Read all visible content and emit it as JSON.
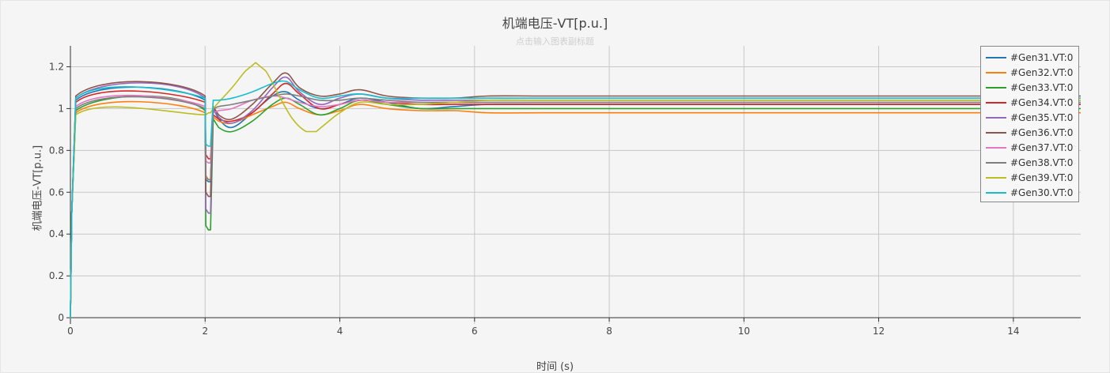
{
  "chart_data": {
    "type": "line",
    "title": "机端电压-VT[p.u.]",
    "subtitle": "点击输入图表副标题",
    "xlabel": "时间 (s)",
    "ylabel": "机端电压-VT[p.u.]",
    "xlim": [
      0,
      15
    ],
    "ylim": [
      -0.03,
      1.3
    ],
    "xticks": [
      0,
      2,
      4,
      6,
      8,
      10,
      12,
      14
    ],
    "yticks": [
      0,
      0.2,
      0.4,
      0.6,
      0.8,
      1,
      1.2
    ],
    "grid": true,
    "legend_position": "top-right",
    "series": [
      {
        "name": "#Gen31.VT:0",
        "color": "#1f77b4",
        "x": [
          0,
          0.02,
          0.08,
          2,
          2.01,
          2.05,
          2.08,
          2.12,
          2.2,
          2.4,
          2.7,
          3.0,
          3.2,
          3.4,
          3.7,
          4.0,
          4.3,
          4.7,
          5.2,
          5.7,
          6.2,
          7,
          8,
          10,
          12,
          14,
          15
        ],
        "y": [
          0,
          0.5,
          1.04,
          1.04,
          0.66,
          0.65,
          0.65,
          1.0,
          0.95,
          0.91,
          0.98,
          1.06,
          1.08,
          1.04,
          1.0,
          1.02,
          1.05,
          1.03,
          1.0,
          1.01,
          1.02,
          1.02,
          1.02,
          1.02,
          1.02,
          1.02,
          1.02
        ]
      },
      {
        "name": "#Gen32.VT:0",
        "color": "#ff7f0e",
        "x": [
          0,
          0.02,
          0.08,
          2,
          2.01,
          2.05,
          2.08,
          2.12,
          2.2,
          2.4,
          2.7,
          3.0,
          3.2,
          3.4,
          3.7,
          4.0,
          4.3,
          4.7,
          5.2,
          5.7,
          6.2,
          7,
          8,
          10,
          12,
          14,
          15
        ],
        "y": [
          0,
          0.5,
          0.98,
          0.98,
          0.68,
          0.66,
          0.66,
          0.96,
          0.94,
          0.93,
          0.97,
          1.01,
          1.03,
          1.0,
          0.97,
          0.99,
          1.02,
          1.0,
          0.99,
          0.99,
          0.98,
          0.98,
          0.98,
          0.98,
          0.98,
          0.98,
          0.98
        ]
      },
      {
        "name": "#Gen33.VT:0",
        "color": "#2ca02c",
        "x": [
          0,
          0.02,
          0.08,
          2,
          2.01,
          2.05,
          2.08,
          2.12,
          2.2,
          2.4,
          2.7,
          3.0,
          3.2,
          3.4,
          3.7,
          4.0,
          4.3,
          4.7,
          5.2,
          5.7,
          6.2,
          7,
          8,
          10,
          12,
          14,
          15
        ],
        "y": [
          0,
          0.5,
          0.99,
          0.99,
          0.44,
          0.42,
          0.42,
          0.95,
          0.91,
          0.89,
          0.94,
          1.02,
          1.05,
          1.02,
          0.97,
          1.0,
          1.04,
          1.02,
          1.0,
          1.0,
          1.0,
          1.0,
          1.0,
          1.0,
          1.0,
          1.0,
          1.0
        ]
      },
      {
        "name": "#Gen34.VT:0",
        "color": "#d62728",
        "x": [
          0,
          0.02,
          0.08,
          2,
          2.01,
          2.05,
          2.08,
          2.12,
          2.2,
          2.4,
          2.7,
          3.0,
          3.2,
          3.4,
          3.7,
          4.0,
          4.3,
          4.7,
          5.2,
          5.7,
          6.2,
          7,
          8,
          10,
          12,
          14,
          15
        ],
        "y": [
          0,
          0.5,
          1.03,
          1.03,
          0.78,
          0.76,
          0.76,
          0.97,
          0.95,
          0.94,
          0.98,
          1.07,
          1.12,
          1.07,
          1.0,
          1.02,
          1.04,
          1.03,
          1.02,
          1.02,
          1.02,
          1.02,
          1.02,
          1.02,
          1.02,
          1.02,
          1.02
        ]
      },
      {
        "name": "#Gen35.VT:0",
        "color": "#9467bd",
        "x": [
          0,
          0.02,
          0.08,
          2,
          2.01,
          2.05,
          2.08,
          2.12,
          2.2,
          2.4,
          2.7,
          3.0,
          3.2,
          3.4,
          3.7,
          4.0,
          4.3,
          4.7,
          5.2,
          5.7,
          6.2,
          7,
          8,
          10,
          12,
          14,
          15
        ],
        "y": [
          0,
          0.5,
          1.05,
          1.05,
          0.52,
          0.5,
          0.5,
          1.0,
          0.96,
          0.93,
          0.99,
          1.1,
          1.15,
          1.08,
          1.02,
          1.05,
          1.07,
          1.05,
          1.04,
          1.04,
          1.04,
          1.04,
          1.04,
          1.04,
          1.04,
          1.04,
          1.04
        ]
      },
      {
        "name": "#Gen36.VT:0",
        "color": "#8c564b",
        "x": [
          0,
          0.02,
          0.08,
          2,
          2.01,
          2.05,
          2.08,
          2.12,
          2.2,
          2.4,
          2.7,
          3.0,
          3.2,
          3.4,
          3.7,
          4.0,
          4.3,
          4.7,
          5.2,
          5.7,
          6.2,
          7,
          8,
          10,
          12,
          14,
          15
        ],
        "y": [
          0,
          0.5,
          1.06,
          1.06,
          0.6,
          0.58,
          0.58,
          1.01,
          0.97,
          0.95,
          1.02,
          1.12,
          1.17,
          1.1,
          1.06,
          1.07,
          1.09,
          1.06,
          1.05,
          1.05,
          1.06,
          1.06,
          1.06,
          1.06,
          1.06,
          1.06,
          1.06
        ]
      },
      {
        "name": "#Gen37.VT:0",
        "color": "#e377c2",
        "x": [
          0,
          0.02,
          0.08,
          2,
          2.01,
          2.05,
          2.08,
          2.12,
          2.2,
          2.4,
          2.7,
          3.0,
          3.2,
          3.4,
          3.7,
          4.0,
          4.3,
          4.7,
          5.2,
          5.7,
          6.2,
          7,
          8,
          10,
          12,
          14,
          15
        ],
        "y": [
          0,
          0.5,
          1.01,
          1.01,
          0.75,
          0.74,
          0.74,
          0.98,
          0.99,
          1.0,
          1.04,
          1.06,
          1.05,
          1.03,
          1.01,
          1.02,
          1.04,
          1.03,
          1.03,
          1.03,
          1.03,
          1.03,
          1.03,
          1.03,
          1.03,
          1.03,
          1.03
        ]
      },
      {
        "name": "#Gen38.VT:0",
        "color": "#7f7f7f",
        "x": [
          0,
          0.02,
          0.08,
          2,
          2.01,
          2.05,
          2.08,
          2.12,
          2.2,
          2.4,
          2.7,
          3.0,
          3.2,
          3.4,
          3.7,
          4.0,
          4.3,
          4.7,
          5.2,
          5.7,
          6.2,
          7,
          8,
          10,
          12,
          14,
          15
        ],
        "y": [
          0,
          0.5,
          1.0,
          1.0,
          0.67,
          0.66,
          0.66,
          1.0,
          1.01,
          1.02,
          1.04,
          1.06,
          1.07,
          1.06,
          1.04,
          1.04,
          1.05,
          1.04,
          1.03,
          1.03,
          1.03,
          1.03,
          1.03,
          1.03,
          1.03,
          1.03,
          1.03
        ]
      },
      {
        "name": "#Gen39.VT:0",
        "color": "#bcbd22",
        "x": [
          0,
          0.02,
          0.08,
          2,
          2.01,
          2.05,
          2.08,
          2.12,
          2.2,
          2.4,
          2.6,
          2.75,
          2.9,
          3.1,
          3.3,
          3.5,
          3.65,
          3.8,
          4.0,
          4.3,
          4.7,
          5.2,
          5.7,
          6.2,
          7,
          8,
          10,
          12,
          14,
          15
        ],
        "y": [
          0,
          0.5,
          0.97,
          0.97,
          0.97,
          0.98,
          0.98,
          1.0,
          1.03,
          1.1,
          1.18,
          1.22,
          1.18,
          1.06,
          0.95,
          0.89,
          0.89,
          0.93,
          0.98,
          1.03,
          1.02,
          1.02,
          1.03,
          1.04,
          1.04,
          1.04,
          1.04,
          1.04,
          1.04,
          1.04
        ]
      },
      {
        "name": "#Gen30.VT:0",
        "color": "#17becf",
        "x": [
          0,
          0.02,
          0.08,
          2,
          2.01,
          2.05,
          2.08,
          2.12,
          2.2,
          2.4,
          2.7,
          3.0,
          3.2,
          3.4,
          3.7,
          4.0,
          4.3,
          4.7,
          5.2,
          5.7,
          6.2,
          7,
          8,
          10,
          12,
          14,
          15
        ],
        "y": [
          0,
          0.5,
          1.05,
          1.05,
          0.83,
          0.82,
          0.82,
          1.04,
          1.04,
          1.05,
          1.08,
          1.12,
          1.13,
          1.09,
          1.05,
          1.06,
          1.07,
          1.05,
          1.05,
          1.05,
          1.05,
          1.05,
          1.05,
          1.05,
          1.05,
          1.05,
          1.05
        ]
      }
    ]
  }
}
